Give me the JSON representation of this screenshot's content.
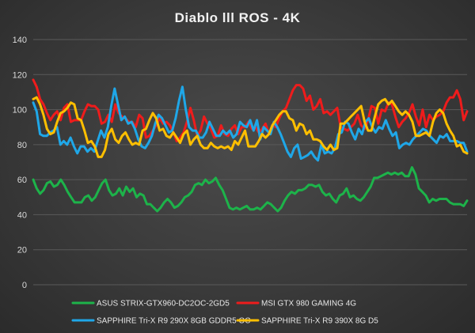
{
  "chart_data": {
    "type": "line",
    "title": "Diablo lll ROS - 4K",
    "xlabel": "",
    "ylabel": "",
    "ylim": [
      0,
      140
    ],
    "yticks": [
      "0",
      "20",
      "40",
      "60",
      "80",
      "100",
      "120",
      "140"
    ],
    "grid": true,
    "legend_position": "bottom",
    "series": [
      {
        "name": "ASUS STRIX-GTX960-DC2OC-2GD5",
        "color": "#1db34a",
        "values": [
          60,
          55,
          52,
          54,
          58,
          59,
          56,
          57,
          60,
          57,
          53,
          50,
          47,
          47,
          47,
          50,
          51,
          48,
          50,
          54,
          58,
          60,
          54,
          51,
          52,
          55,
          51,
          56,
          53,
          55,
          50,
          52,
          51,
          46,
          46,
          44,
          42,
          44,
          47,
          49,
          47,
          44,
          45,
          47,
          50,
          51,
          53,
          57,
          58,
          57,
          60,
          58,
          59,
          61,
          57,
          54,
          49,
          44,
          43,
          44,
          43,
          44,
          45,
          43,
          43,
          44,
          43,
          45,
          47,
          46,
          44,
          42,
          44,
          48,
          51,
          53,
          52,
          54,
          54,
          55,
          57,
          57,
          56,
          57,
          53,
          51,
          52,
          49,
          47,
          51,
          52,
          55,
          50,
          51,
          49,
          48,
          50,
          53,
          56,
          61,
          61,
          62,
          63,
          64,
          63,
          64,
          63,
          64,
          62,
          62,
          67,
          63,
          55,
          53,
          51,
          47,
          49,
          48,
          49,
          49,
          49,
          47,
          46,
          46,
          46,
          45,
          48
        ]
      },
      {
        "name": "MSI GTX 980 GAMING 4G",
        "color": "#ee1c1c",
        "values": [
          117,
          113,
          106,
          103,
          98,
          94,
          97,
          99,
          94,
          101,
          103,
          93,
          94,
          94,
          94,
          99,
          103,
          102,
          102,
          100,
          92,
          93,
          97,
          93,
          103,
          98,
          96,
          95,
          93,
          93,
          90,
          97,
          95,
          84,
          85,
          88,
          91,
          95,
          92,
          93,
          91,
          87,
          82,
          84,
          87,
          93,
          101,
          94,
          85,
          88,
          96,
          92,
          89,
          84,
          85,
          91,
          86,
          85,
          89,
          91,
          86,
          90,
          90,
          93,
          89,
          90,
          87,
          89,
          92,
          86,
          91,
          90,
          95,
          99,
          101,
          106,
          111,
          114,
          114,
          112,
          105,
          108,
          100,
          102,
          106,
          98,
          99,
          97,
          99,
          101,
          90,
          89,
          88,
          90,
          92,
          97,
          91,
          89,
          94,
          102,
          101,
          92,
          100,
          99,
          104,
          103,
          96,
          90,
          93,
          95,
          98,
          103,
          96,
          91,
          100,
          90,
          97,
          94,
          96,
          97,
          99,
          104,
          107,
          107,
          111,
          106,
          94,
          99
        ]
      },
      {
        "name": "SAPPHIRE Tri-X R9 290X 8GB GDDR5 OC",
        "color": "#1fa7e8",
        "values": [
          104,
          99,
          86,
          85,
          85,
          87,
          88,
          90,
          80,
          82,
          80,
          84,
          79,
          75,
          79,
          79,
          76,
          78,
          76,
          82,
          88,
          84,
          90,
          102,
          112,
          103,
          94,
          96,
          92,
          93,
          89,
          83,
          79,
          78,
          81,
          85,
          92,
          97,
          95,
          91,
          87,
          88,
          95,
          105,
          113,
          100,
          90,
          88,
          88,
          84,
          84,
          87,
          93,
          89,
          85,
          85,
          88,
          86,
          88,
          84,
          86,
          93,
          91,
          90,
          94,
          88,
          94,
          83,
          90,
          88,
          86,
          93,
          90,
          86,
          81,
          76,
          73,
          78,
          80,
          72,
          73,
          74,
          76,
          73,
          71,
          80,
          75,
          76,
          75,
          78,
          86,
          87,
          93,
          92,
          87,
          83,
          89,
          86,
          93,
          95,
          90,
          87,
          90,
          89,
          94,
          89,
          85,
          87,
          78,
          80,
          81,
          80,
          83,
          85,
          87,
          89,
          88,
          85,
          83,
          81,
          85,
          84,
          86,
          82,
          82,
          82,
          81,
          81,
          76
        ]
      },
      {
        "name": "SAPPHIRE Tri-X R9 390X 8G D5",
        "color": "#ffbf00",
        "values": [
          106,
          107,
          103,
          97,
          89,
          86,
          87,
          93,
          98,
          99,
          101,
          104,
          103,
          95,
          94,
          88,
          81,
          82,
          79,
          73,
          73,
          77,
          86,
          89,
          83,
          81,
          85,
          87,
          83,
          80,
          81,
          80,
          88,
          89,
          94,
          98,
          95,
          88,
          89,
          85,
          84,
          87,
          84,
          81,
          86,
          88,
          80,
          83,
          85,
          80,
          78,
          78,
          81,
          79,
          78,
          79,
          78,
          79,
          77,
          82,
          80,
          84,
          88,
          79,
          79,
          79,
          82,
          86,
          84,
          86,
          91,
          94,
          97,
          99,
          99,
          95,
          94,
          88,
          92,
          91,
          86,
          88,
          83,
          83,
          82,
          79,
          77,
          80,
          77,
          78,
          92,
          92,
          94,
          96,
          98,
          100,
          102,
          93,
          88,
          88,
          96,
          103,
          105,
          106,
          103,
          105,
          102,
          99,
          97,
          99,
          97,
          93,
          85,
          85,
          86,
          87,
          85,
          93,
          98,
          100,
          98,
          92,
          88,
          85,
          79,
          80,
          76,
          75
        ]
      }
    ]
  }
}
